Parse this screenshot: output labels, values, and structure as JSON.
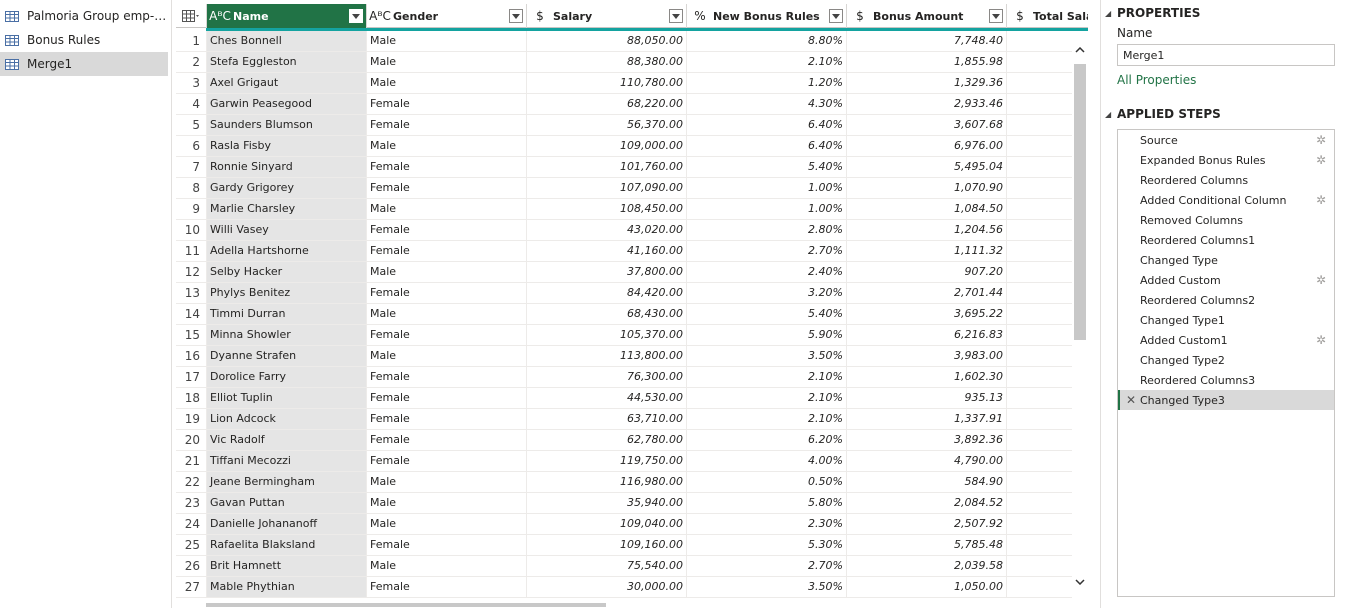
{
  "queries": [
    {
      "label": "Palmoria Group emp-dat...",
      "icon": "table-icon",
      "selected": false
    },
    {
      "label": "Bonus Rules",
      "icon": "table-icon",
      "selected": false
    },
    {
      "label": "Merge1",
      "icon": "table-icon",
      "selected": true
    }
  ],
  "grid": {
    "columns": [
      {
        "type_icon": "text-type-icon",
        "type_glyph": "AᴮC",
        "label": "Name",
        "active": true
      },
      {
        "type_icon": "text-type-icon",
        "type_glyph": "AᴮC",
        "label": "Gender",
        "active": false
      },
      {
        "type_icon": "currency-type-icon",
        "type_glyph": "$",
        "label": "Salary",
        "active": false
      },
      {
        "type_icon": "percent-type-icon",
        "type_glyph": "%",
        "label": "New Bonus Rules",
        "active": false
      },
      {
        "type_icon": "currency-type-icon",
        "type_glyph": "$",
        "label": "Bonus Amount",
        "active": false
      },
      {
        "type_icon": "currency-type-icon",
        "type_glyph": "$",
        "label": "Total Salary",
        "active": false
      }
    ],
    "rows": [
      [
        "1",
        "Ches Bonnell",
        "Male",
        "88,050.00",
        "8.80%",
        "7,748.40"
      ],
      [
        "2",
        "Stefa Eggleston",
        "Male",
        "88,380.00",
        "2.10%",
        "1,855.98"
      ],
      [
        "3",
        "Axel Grigaut",
        "Male",
        "110,780.00",
        "1.20%",
        "1,329.36"
      ],
      [
        "4",
        "Garwin Peasegood",
        "Female",
        "68,220.00",
        "4.30%",
        "2,933.46"
      ],
      [
        "5",
        "Saunders Blumson",
        "Female",
        "56,370.00",
        "6.40%",
        "3,607.68"
      ],
      [
        "6",
        "Rasla Fisby",
        "Male",
        "109,000.00",
        "6.40%",
        "6,976.00"
      ],
      [
        "7",
        "Ronnie Sinyard",
        "Female",
        "101,760.00",
        "5.40%",
        "5,495.04"
      ],
      [
        "8",
        "Gardy Grigorey",
        "Female",
        "107,090.00",
        "1.00%",
        "1,070.90"
      ],
      [
        "9",
        "Marlie Charsley",
        "Male",
        "108,450.00",
        "1.00%",
        "1,084.50"
      ],
      [
        "10",
        "Willi Vasey",
        "Female",
        "43,020.00",
        "2.80%",
        "1,204.56"
      ],
      [
        "11",
        "Adella Hartshorne",
        "Female",
        "41,160.00",
        "2.70%",
        "1,111.32"
      ],
      [
        "12",
        "Selby Hacker",
        "Male",
        "37,800.00",
        "2.40%",
        "907.20"
      ],
      [
        "13",
        "Phylys Benitez",
        "Female",
        "84,420.00",
        "3.20%",
        "2,701.44"
      ],
      [
        "14",
        "Timmi Durran",
        "Male",
        "68,430.00",
        "5.40%",
        "3,695.22"
      ],
      [
        "15",
        "Minna Showler",
        "Female",
        "105,370.00",
        "5.90%",
        "6,216.83"
      ],
      [
        "16",
        "Dyanne Strafen",
        "Male",
        "113,800.00",
        "3.50%",
        "3,983.00"
      ],
      [
        "17",
        "Dorolice Farry",
        "Female",
        "76,300.00",
        "2.10%",
        "1,602.30"
      ],
      [
        "18",
        "Elliot Tuplin",
        "Female",
        "44,530.00",
        "2.10%",
        "935.13"
      ],
      [
        "19",
        "Lion Adcock",
        "Female",
        "63,710.00",
        "2.10%",
        "1,337.91"
      ],
      [
        "20",
        "Vic Radolf",
        "Female",
        "62,780.00",
        "6.20%",
        "3,892.36"
      ],
      [
        "21",
        "Tiffani Mecozzi",
        "Female",
        "119,750.00",
        "4.00%",
        "4,790.00"
      ],
      [
        "22",
        "Jeane Bermingham",
        "Male",
        "116,980.00",
        "0.50%",
        "584.90"
      ],
      [
        "23",
        "Gavan Puttan",
        "Male",
        "35,940.00",
        "5.80%",
        "2,084.52"
      ],
      [
        "24",
        "Danielle Johananoff",
        "Male",
        "109,040.00",
        "2.30%",
        "2,507.92"
      ],
      [
        "25",
        "Rafaelita Blaksland",
        "Female",
        "109,160.00",
        "5.30%",
        "5,785.48"
      ],
      [
        "26",
        "Brit Hamnett",
        "Male",
        "75,540.00",
        "2.70%",
        "2,039.58"
      ],
      [
        "27",
        "Mable Phythian",
        "Female",
        "30,000.00",
        "3.50%",
        "1,050.00"
      ]
    ]
  },
  "properties": {
    "title": "PROPERTIES",
    "name_label": "Name",
    "name_value": "Merge1",
    "all_properties": "All Properties"
  },
  "applied_steps": {
    "title": "APPLIED STEPS",
    "steps": [
      {
        "label": "Source",
        "gear": true,
        "active": false
      },
      {
        "label": "Expanded Bonus Rules",
        "gear": true,
        "active": false
      },
      {
        "label": "Reordered Columns",
        "gear": false,
        "active": false
      },
      {
        "label": "Added Conditional Column",
        "gear": true,
        "active": false
      },
      {
        "label": "Removed Columns",
        "gear": false,
        "active": false
      },
      {
        "label": "Reordered Columns1",
        "gear": false,
        "active": false
      },
      {
        "label": "Changed Type",
        "gear": false,
        "active": false
      },
      {
        "label": "Added Custom",
        "gear": true,
        "active": false
      },
      {
        "label": "Reordered Columns2",
        "gear": false,
        "active": false
      },
      {
        "label": "Changed Type1",
        "gear": false,
        "active": false
      },
      {
        "label": "Added Custom1",
        "gear": true,
        "active": false
      },
      {
        "label": "Changed Type2",
        "gear": false,
        "active": false
      },
      {
        "label": "Reordered Columns3",
        "gear": false,
        "active": false
      },
      {
        "label": "Changed Type3",
        "gear": false,
        "active": true
      }
    ]
  },
  "colors": {
    "accent": "#217346",
    "header_bar": "#14a3a0",
    "selected": "#d9d9d9"
  }
}
